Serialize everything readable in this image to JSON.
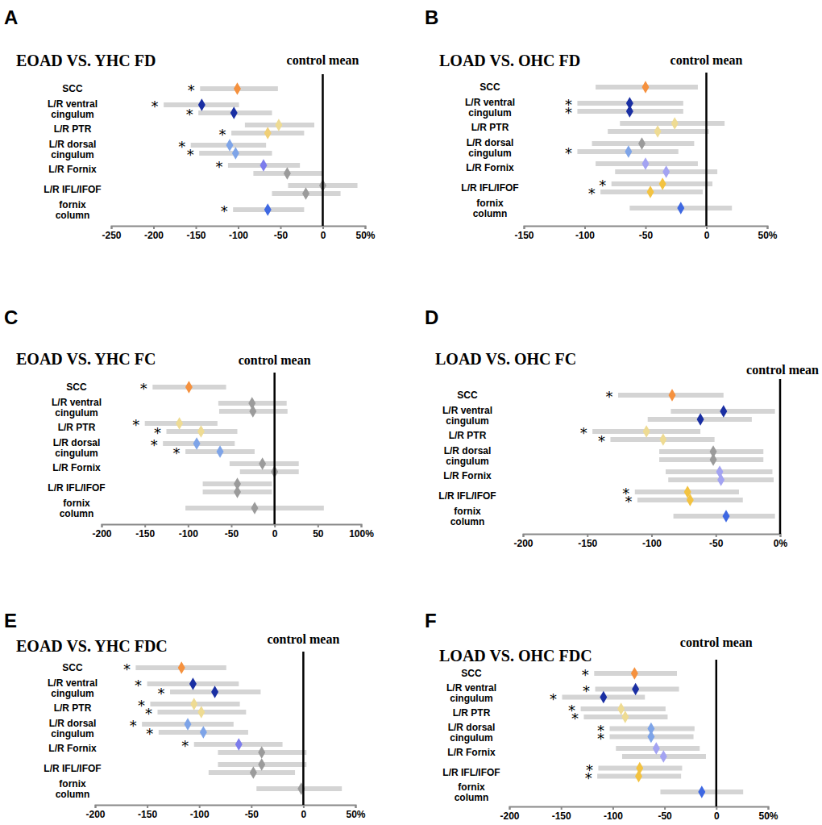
{
  "chart_data": [
    {
      "type": "forest",
      "panel_label": "A",
      "title": "EOAD VS. YHC FD",
      "orientation": "horizontal",
      "marker": "diamond",
      "categories": [
        "SCC",
        "L/R ventral cingulum",
        null,
        "L/R PTR",
        null,
        "L/R dorsal cingulum",
        null,
        "L/R Fornix",
        null,
        "L/R IFL/IFOF",
        null,
        "fornix column"
      ],
      "values": [
        -101,
        -143,
        -105,
        -52,
        -65,
        -110,
        -103,
        -70,
        -42,
        0,
        -20,
        -65
      ],
      "lower": [
        -145,
        -188,
        -147,
        -92,
        -108,
        -156,
        -146,
        -112,
        -82,
        -41,
        -60,
        -106
      ],
      "upper": [
        -53,
        -99,
        -60,
        -10,
        -22,
        -67,
        -60,
        -27,
        0,
        41,
        21,
        -22
      ],
      "colors": [
        "#f5913e",
        "#1a2fa3",
        "#1a2fa3",
        "#eedb93",
        "#f0cf76",
        "#7ea4e8",
        "#7ea4e8",
        "#7c7cec",
        "#9b9b9b",
        "#9b9b9b",
        "#9b9b9b",
        "#3e68e2"
      ],
      "significance": [
        "*",
        "*",
        "*",
        null,
        "*",
        "*",
        "*",
        "*",
        null,
        null,
        null,
        "*"
      ],
      "reference": {
        "value": 0,
        "label": "control mean"
      },
      "xlim": [
        -250,
        50
      ],
      "xticks": [
        -250,
        -200,
        -150,
        -100,
        -50,
        0,
        {
          "value": 50,
          "label": "50%"
        }
      ]
    },
    {
      "type": "forest",
      "panel_label": "B",
      "title": "LOAD VS. OHC FD",
      "orientation": "horizontal",
      "marker": "diamond",
      "categories": [
        "SCC",
        "L/R ventral cingulum",
        null,
        "L/R PTR",
        null,
        "L/R dorsal cingulum",
        null,
        "L/R Fornix",
        null,
        "L/R IFL/IFOF",
        null,
        "fornix column"
      ],
      "values": [
        -50,
        -63,
        -63,
        -26,
        -40,
        -53,
        -64,
        -50,
        -33,
        -36,
        -46,
        -21
      ],
      "lower": [
        -91,
        -106,
        -106,
        -71,
        -81,
        -94,
        -106,
        -91,
        -75,
        -78,
        -87,
        -63
      ],
      "upper": [
        -7,
        -19,
        -19,
        15,
        2,
        -10,
        -23,
        -7,
        9,
        5,
        -3,
        21
      ],
      "colors": [
        "#f5913e",
        "#1a2fa3",
        "#1a2fa3",
        "#eedb93",
        "#eedb93",
        "#9b9b9b",
        "#7ea4e8",
        "#a3a3f2",
        "#a3a3f2",
        "#f3c341",
        "#f3c341",
        "#3e68e2"
      ],
      "significance": [
        null,
        "*",
        "*",
        null,
        null,
        null,
        "*",
        null,
        null,
        "*",
        "*",
        null
      ],
      "reference": {
        "value": 0,
        "label": "control mean"
      },
      "xlim": [
        -150,
        50
      ],
      "xticks": [
        -150,
        -100,
        -50,
        0,
        {
          "value": 50,
          "label": "50%"
        }
      ]
    },
    {
      "type": "forest",
      "panel_label": "C",
      "title": "EOAD VS. YHC FC",
      "orientation": "horizontal",
      "marker": "diamond",
      "categories": [
        "SCC",
        "L/R ventral cingulum",
        null,
        "L/R PTR",
        null,
        "L/R dorsal cingulum",
        null,
        "L/R Fornix",
        null,
        "L/R IFL/IFOF",
        null,
        "fornix column"
      ],
      "values": [
        -99,
        -26,
        -25,
        -110,
        -85,
        -90,
        -63,
        -14,
        0,
        -43,
        -43,
        -23
      ],
      "lower": [
        -141,
        -65,
        -64,
        -150,
        -125,
        -129,
        -103,
        -52,
        -40,
        -83,
        -83,
        -103
      ],
      "upper": [
        -56,
        14,
        15,
        -66,
        -43,
        -46,
        -23,
        28,
        28,
        -3,
        -3,
        57
      ],
      "colors": [
        "#f5913e",
        "#9b9b9b",
        "#9b9b9b",
        "#eedb93",
        "#eedb93",
        "#7ea4e8",
        "#7ea4e8",
        "#9b9b9b",
        "#9b9b9b",
        "#9b9b9b",
        "#9b9b9b",
        "#9b9b9b"
      ],
      "significance": [
        "*",
        null,
        null,
        "*",
        "*",
        "*",
        "*",
        null,
        null,
        null,
        null,
        null
      ],
      "reference": {
        "value": 0,
        "label": "control mean"
      },
      "xlim": [
        -200,
        100
      ],
      "xticks": [
        -200,
        -150,
        -100,
        -50,
        0,
        50,
        {
          "value": 100,
          "label": "100%"
        }
      ]
    },
    {
      "type": "forest",
      "panel_label": "D",
      "title": "LOAD VS. OHC FC",
      "orientation": "horizontal",
      "marker": "diamond",
      "categories": [
        "SCC",
        "L/R ventral cingulum",
        null,
        "L/R PTR",
        null,
        "L/R dorsal cingulum",
        null,
        "L/R Fornix",
        null,
        "L/R IFL/IFOF",
        null,
        "fornix column"
      ],
      "values": [
        -84,
        -44,
        -62,
        -104,
        -91,
        -52,
        -52,
        -47,
        -46,
        -72,
        -70,
        -42
      ],
      "lower": [
        -126,
        -85,
        -103,
        -146,
        -132,
        -94,
        -94,
        -89,
        -87,
        -113,
        -111,
        -83
      ],
      "upper": [
        -44,
        -4,
        -22,
        -62,
        -51,
        -13,
        -13,
        -6,
        -5,
        -32,
        -29,
        -4
      ],
      "colors": [
        "#f5913e",
        "#1a2fa3",
        "#1a2fa3",
        "#eedb93",
        "#eedb93",
        "#9b9b9b",
        "#9b9b9b",
        "#a3a3f2",
        "#a3a3f2",
        "#f3c341",
        "#f3c341",
        "#3e68e2"
      ],
      "significance": [
        "*",
        null,
        null,
        "*",
        "*",
        null,
        null,
        null,
        null,
        "*",
        "*",
        null
      ],
      "reference": {
        "value": 0,
        "label": "control mean"
      },
      "xlim": [
        -200,
        0
      ],
      "xticks": [
        -200,
        -150,
        -100,
        -50,
        {
          "value": 0,
          "label": "0%"
        }
      ]
    },
    {
      "type": "forest",
      "panel_label": "E",
      "title": "EOAD VS. YHC FDC",
      "orientation": "horizontal",
      "marker": "diamond",
      "categories": [
        "SCC",
        "L/R ventral cingulum",
        null,
        "L/R PTR",
        null,
        "L/R dorsal cingulum",
        null,
        "L/R Fornix",
        null,
        "L/R IFL/IFOF",
        null,
        "fornix column"
      ],
      "values": [
        -117,
        -106,
        -85,
        -105,
        -98,
        -111,
        -96,
        -62,
        -40,
        -40,
        -48,
        -2
      ],
      "lower": [
        -161,
        -150,
        -128,
        -147,
        -140,
        -155,
        -139,
        -105,
        -82,
        -82,
        -91,
        -45
      ],
      "upper": [
        -74,
        -62,
        -41,
        -61,
        -55,
        -67,
        -53,
        -20,
        3,
        3,
        -8,
        37
      ],
      "colors": [
        "#f5913e",
        "#1a2fa3",
        "#1a2fa3",
        "#eedb93",
        "#eedb93",
        "#7ea4e8",
        "#7ea4e8",
        "#7c7cec",
        "#9b9b9b",
        "#9b9b9b",
        "#9b9b9b",
        "#9b9b9b"
      ],
      "significance": [
        "*",
        "*",
        "*",
        "*",
        "*",
        "*",
        "*",
        "*",
        null,
        null,
        null,
        null
      ],
      "reference": {
        "value": 0,
        "label": "control mean"
      },
      "xlim": [
        -200,
        50
      ],
      "xticks": [
        -200,
        -150,
        -100,
        -50,
        0,
        {
          "value": 50,
          "label": "50%"
        }
      ]
    },
    {
      "type": "forest",
      "panel_label": "F",
      "title": "LOAD VS. OHC FDC",
      "orientation": "horizontal",
      "marker": "diamond",
      "categories": [
        "SCC",
        "L/R ventral cingulum",
        null,
        "L/R PTR",
        null,
        "L/R dorsal cingulum",
        null,
        "L/R Fornix",
        null,
        "L/R IFL/IFOF",
        null,
        "fornix column"
      ],
      "values": [
        -79,
        -78,
        -109,
        -92,
        -88,
        -63,
        -63,
        -58,
        -51,
        -74,
        -75,
        -14
      ],
      "lower": [
        -118,
        -117,
        -149,
        -131,
        -128,
        -103,
        -103,
        -97,
        -91,
        -114,
        -115,
        -54
      ],
      "upper": [
        -38,
        -36,
        -69,
        -49,
        -47,
        -21,
        -22,
        -16,
        -10,
        -33,
        -34,
        26
      ],
      "colors": [
        "#f5913e",
        "#1a2fa3",
        "#1a2fa3",
        "#eedb93",
        "#eedb93",
        "#7ea4e8",
        "#7ea4e8",
        "#a3a3f2",
        "#a3a3f2",
        "#f3c341",
        "#f3c341",
        "#3e68e2"
      ],
      "significance": [
        "*",
        "*",
        "*",
        "*",
        "*",
        "*",
        "*",
        null,
        null,
        "*",
        "*",
        null
      ],
      "reference": {
        "value": 0,
        "label": "control mean"
      },
      "xlim": [
        -200,
        50
      ],
      "xticks": [
        -200,
        -150,
        -100,
        -50,
        0,
        {
          "value": 50,
          "label": "50%"
        }
      ]
    }
  ]
}
